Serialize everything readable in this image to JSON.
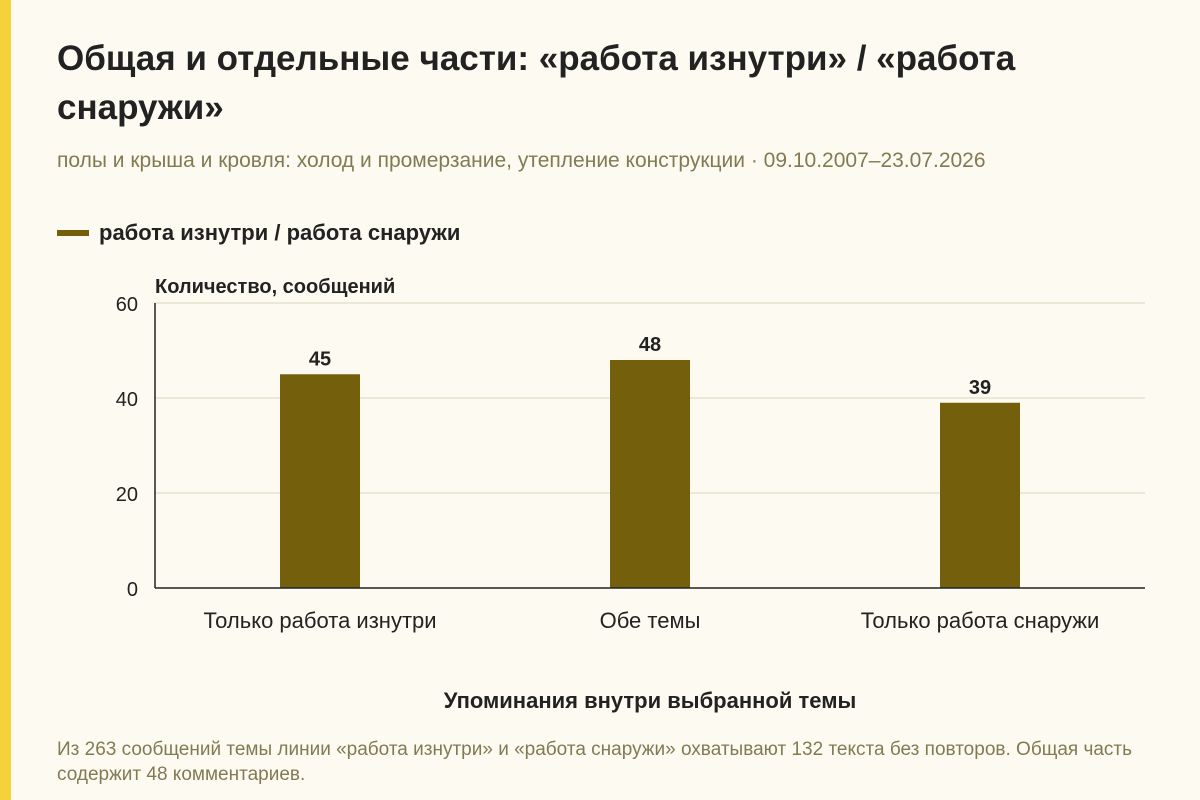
{
  "title": "Общая и отдельные части: «работа изнутри» / «работа снаружи»",
  "subtitle": "полы и крыша и кровля: холод и промерзание, утепление конструкции · 09.10.2007–23.07.2026",
  "footnote": "Из 263 сообщений темы линии «работа изнутри» и «работа снаружи» охватывают 132 текста без повторов. Общая часть содержит 48 комментариев.",
  "colors": {
    "accent_strip": "#f5d13a",
    "bar": "#74600c",
    "background": "#fdfbf1",
    "muted_text": "#827a52"
  },
  "chart_data": {
    "type": "bar",
    "title": "Общая и отдельные части: «работа изнутри» / «работа снаружи»",
    "categories": [
      "Только работа изнутри",
      "Обе темы",
      "Только работа снаружи"
    ],
    "series": [
      {
        "name": "работа изнутри / работа снаружи",
        "values": [
          45,
          48,
          39
        ]
      }
    ],
    "xlabel": "Упоминания внутри выбранной темы",
    "ylabel": "Количество, сообщений",
    "ylim": [
      0,
      60
    ],
    "yticks": [
      0,
      20,
      40,
      60
    ],
    "grid": true,
    "legend_position": "top-left",
    "data_labels": true
  }
}
